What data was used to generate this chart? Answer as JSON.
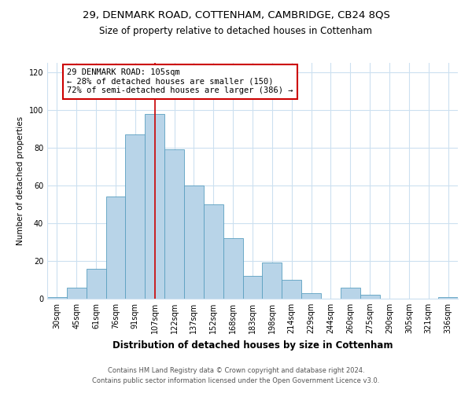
{
  "title": "29, DENMARK ROAD, COTTENHAM, CAMBRIDGE, CB24 8QS",
  "subtitle": "Size of property relative to detached houses in Cottenham",
  "xlabel": "Distribution of detached houses by size in Cottenham",
  "ylabel": "Number of detached properties",
  "footer_line1": "Contains HM Land Registry data © Crown copyright and database right 2024.",
  "footer_line2": "Contains public sector information licensed under the Open Government Licence v3.0.",
  "bar_labels": [
    "30sqm",
    "45sqm",
    "61sqm",
    "76sqm",
    "91sqm",
    "107sqm",
    "122sqm",
    "137sqm",
    "152sqm",
    "168sqm",
    "183sqm",
    "198sqm",
    "214sqm",
    "229sqm",
    "244sqm",
    "260sqm",
    "275sqm",
    "290sqm",
    "305sqm",
    "321sqm",
    "336sqm"
  ],
  "bar_values": [
    1,
    6,
    16,
    54,
    87,
    98,
    79,
    60,
    50,
    32,
    12,
    19,
    10,
    3,
    0,
    6,
    2,
    0,
    0,
    0,
    1
  ],
  "bar_color": "#b8d4e8",
  "bar_edge_color": "#5a9fc0",
  "marker_bin_index": 5,
  "marker_color": "#cc0000",
  "annotation_box_text": "29 DENMARK ROAD: 105sqm\n← 28% of detached houses are smaller (150)\n72% of semi-detached houses are larger (386) →",
  "annotation_box_edge_color": "#cc0000",
  "annotation_box_face_color": "#ffffff",
  "ylim": [
    0,
    125
  ],
  "yticks": [
    0,
    20,
    40,
    60,
    80,
    100,
    120
  ],
  "title_fontsize": 9.5,
  "subtitle_fontsize": 8.5,
  "xlabel_fontsize": 8.5,
  "ylabel_fontsize": 7.5,
  "tick_fontsize": 7,
  "annotation_fontsize": 7.5,
  "footer_fontsize": 6,
  "background_color": "#ffffff",
  "grid_color": "#cce0f0"
}
